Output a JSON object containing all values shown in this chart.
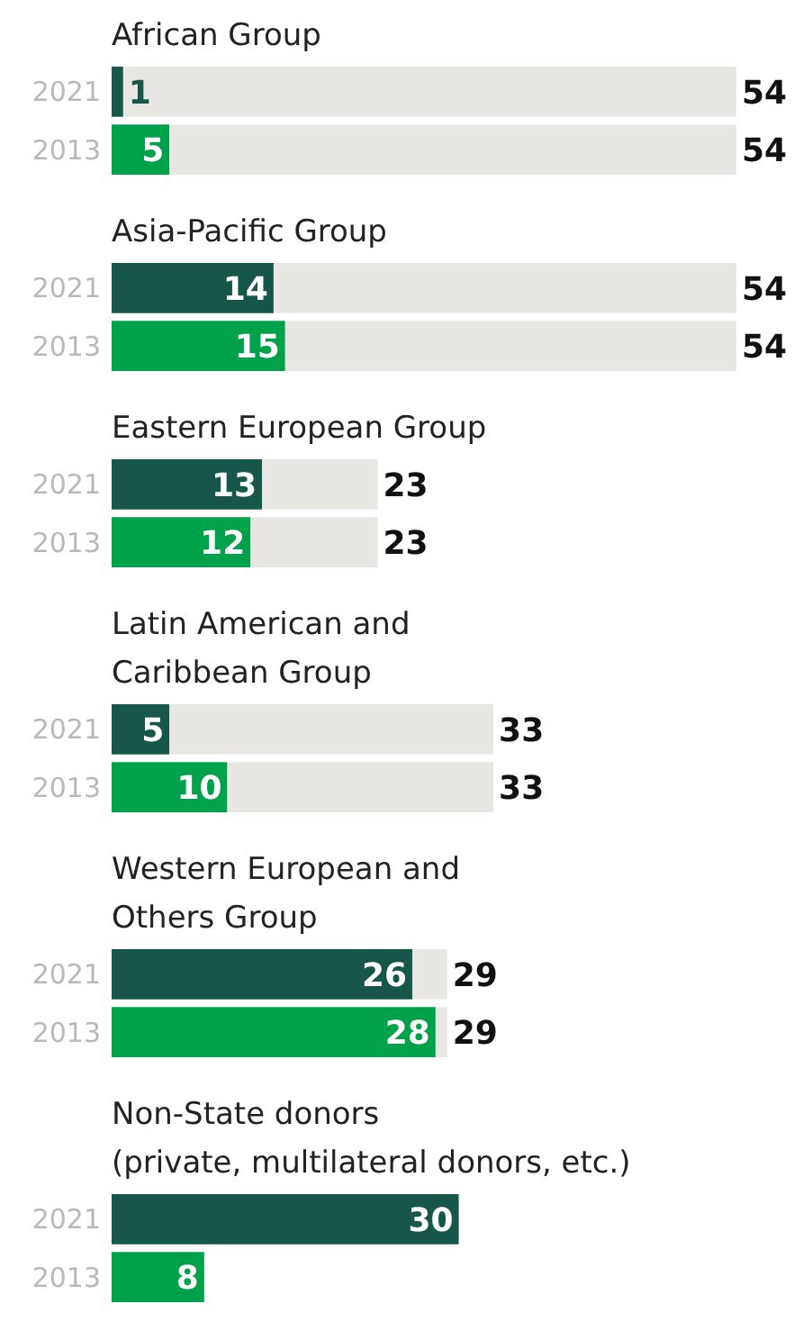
{
  "chart_data": [
    {
      "type": "bar",
      "orientation": "horizontal",
      "stacked": true,
      "title": "African Group",
      "categories": [
        "2021",
        "2013"
      ],
      "tick_labels": "y",
      "series": [
        {
          "colors": [
            "#17574b",
            "#00a14b"
          ],
          "values": [
            1,
            5
          ],
          "value_labels": [
            "1",
            "5"
          ]
        },
        {
          "color": "#e9e7e3",
          "values": [
            53,
            49
          ]
        }
      ],
      "totals": [
        "54",
        "54"
      ]
    },
    {
      "type": "bar",
      "orientation": "horizontal",
      "stacked": true,
      "title": "Asia-Pacific Group",
      "categories": [
        "2021",
        "2013"
      ],
      "tick_labels": "y",
      "series": [
        {
          "colors": [
            "#17574b",
            "#00a14b"
          ],
          "values": [
            14,
            15
          ],
          "value_labels": [
            "14",
            "15"
          ]
        },
        {
          "color": "#e9e7e3",
          "values": [
            40,
            39
          ]
        }
      ],
      "totals": [
        "54",
        "54"
      ]
    },
    {
      "type": "bar",
      "orientation": "horizontal",
      "stacked": true,
      "title": "Eastern European Group",
      "categories": [
        "2021",
        "2013"
      ],
      "tick_labels": "y",
      "series": [
        {
          "colors": [
            "#17574b",
            "#00a14b"
          ],
          "values": [
            13,
            12
          ],
          "value_labels": [
            "13",
            "12"
          ]
        },
        {
          "color": "#e9e7e3",
          "values": [
            10,
            11
          ]
        }
      ],
      "totals": [
        "23",
        "23"
      ]
    },
    {
      "type": "bar",
      "orientation": "horizontal",
      "stacked": true,
      "title": "Latin American and\nCaribbean Group",
      "categories": [
        "2021",
        "2013"
      ],
      "tick_labels": "y",
      "series": [
        {
          "colors": [
            "#17574b",
            "#00a14b"
          ],
          "values": [
            5,
            10
          ],
          "value_labels": [
            "5",
            "10"
          ]
        },
        {
          "color": "#e9e7e3",
          "values": [
            28,
            23
          ]
        }
      ],
      "totals": [
        "33",
        "33"
      ]
    },
    {
      "type": "bar",
      "orientation": "horizontal",
      "stacked": true,
      "title": "Western European and\nOthers Group",
      "categories": [
        "2021",
        "2013"
      ],
      "tick_labels": "y",
      "series": [
        {
          "colors": [
            "#17574b",
            "#00a14b"
          ],
          "values": [
            26,
            28
          ],
          "value_labels": [
            "26",
            "28"
          ]
        },
        {
          "color": "#e9e7e3",
          "values": [
            3,
            1
          ]
        }
      ],
      "totals": [
        "29",
        "29"
      ]
    },
    {
      "type": "bar",
      "orientation": "horizontal",
      "title": "Non-State donors\n(private, multilateral donors, etc.)",
      "categories": [
        "2021",
        "2013"
      ],
      "tick_labels": "y",
      "series": [
        {
          "colors": [
            "#17574b",
            "#00a14b"
          ],
          "values": [
            30,
            8
          ],
          "value_labels": [
            "30",
            "8"
          ]
        }
      ]
    }
  ]
}
